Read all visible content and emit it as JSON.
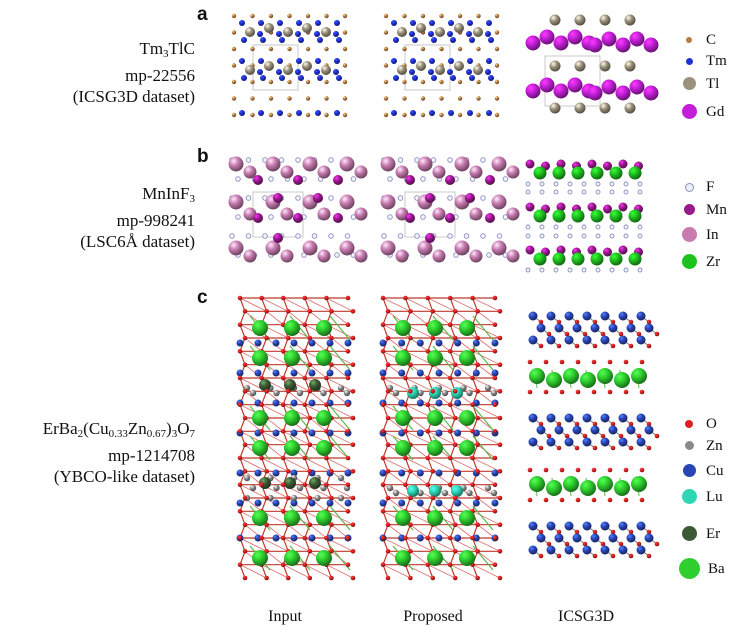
{
  "panels": [
    {
      "letter": "a",
      "formula_parts": [
        "Tm",
        "3",
        "TlC"
      ],
      "mp_id": "mp-22556",
      "dataset": "(ICSG3D dataset)",
      "legend": [
        {
          "symbol": "C",
          "color": "#b97a45"
        },
        {
          "symbol": "Tm",
          "color": "#1f2fd6"
        },
        {
          "symbol": "Tl",
          "color": "#9b917c"
        },
        {
          "symbol": "Gd",
          "color": "#c41fd8"
        }
      ]
    },
    {
      "letter": "b",
      "formula_parts": [
        "MnInF",
        "3"
      ],
      "mp_id": "mp-998241",
      "dataset": "(LSC6Å dataset)",
      "legend": [
        {
          "symbol": "F",
          "color": "#c7cbe8"
        },
        {
          "symbol": "Mn",
          "color": "#9a1a8e"
        },
        {
          "symbol": "In",
          "color": "#c87bb0"
        },
        {
          "symbol": "Zr",
          "color": "#1ec21e"
        }
      ]
    },
    {
      "letter": "c",
      "formula_parts": [
        "ErBa",
        "2",
        "(Cu",
        "0.33",
        "Zn",
        "0.67",
        ")",
        "3",
        "O",
        "7"
      ],
      "mp_id": "mp-1214708",
      "dataset": "(YBCO-like dataset)",
      "legend": [
        {
          "symbol": "O",
          "color": "#e02020"
        },
        {
          "symbol": "Zn",
          "color": "#8a8a8a"
        },
        {
          "symbol": "Cu",
          "color": "#2a45b5"
        },
        {
          "symbol": "Lu",
          "color": "#2ed6b4"
        },
        {
          "symbol": "Er",
          "color": "#3d5a36"
        },
        {
          "symbol": "Ba",
          "color": "#2ecf2e"
        }
      ]
    }
  ],
  "columns": [
    "Input",
    "Proposed",
    "ICSG3D"
  ]
}
